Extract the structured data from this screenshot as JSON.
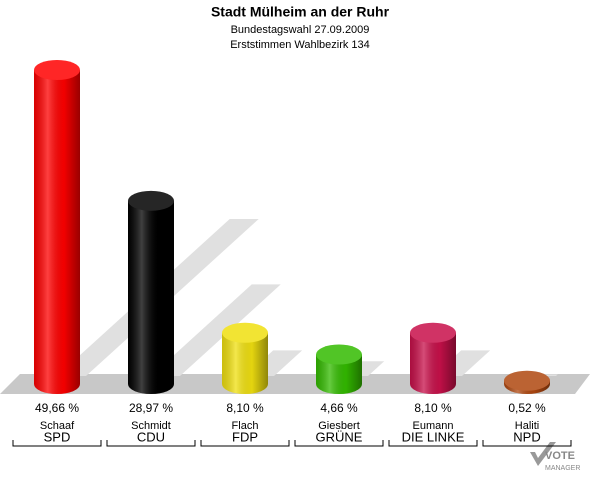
{
  "chart_data": {
    "type": "bar3d",
    "title": "Stadt Mülheim an der Ruhr",
    "subtitle": "Bundestagswahl 27.09.2009",
    "subtitle_2": "Erststimmen Wahlbezirk 134",
    "categories": [
      "Schaaf",
      "Schmidt",
      "Flach",
      "Giesbert",
      "Eumann",
      "Haliti"
    ],
    "groups": [
      "SPD",
      "CDU",
      "FDP",
      "GRÜNE",
      "DIE LINKE",
      "NPD"
    ],
    "values": [
      49.66,
      28.97,
      8.1,
      4.66,
      8.1,
      0.52
    ],
    "value_labels": [
      "49,66 %",
      "28,97 %",
      "8,10 %",
      "4,66 %",
      "8,10 %",
      "0,52 %"
    ],
    "colors": [
      "#ff0000",
      "#000000",
      "#f0e010",
      "#33bb00",
      "#c8104a",
      "#b04810"
    ],
    "logo": [
      "VOTE",
      "MANAGER"
    ]
  }
}
